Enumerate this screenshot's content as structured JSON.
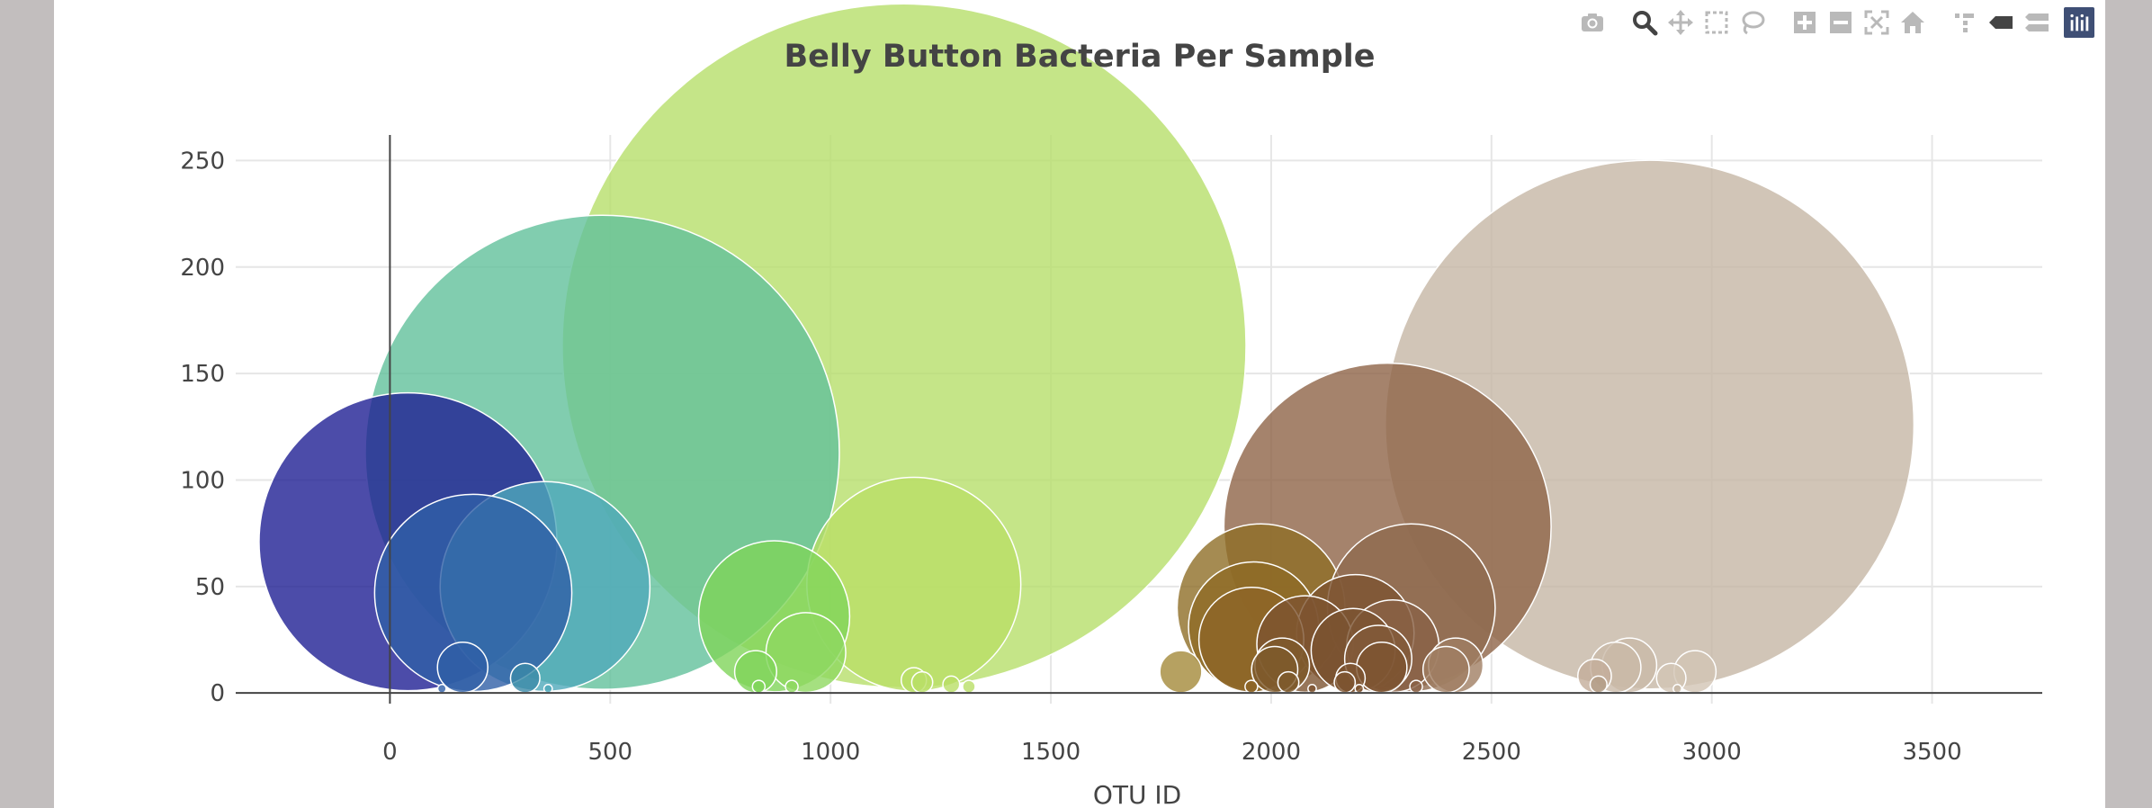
{
  "modebar": {
    "icons": [
      "camera-icon",
      "zoom-icon",
      "pan-icon",
      "box-select-icon",
      "lasso-icon",
      "zoom-in-icon",
      "zoom-out-icon",
      "autoscale-icon",
      "reset-axes-icon",
      "spike-lines-icon",
      "hover-closest-icon",
      "hover-compare-icon",
      "plotly-logo-icon"
    ]
  },
  "colors": {
    "background": "#c2bebe",
    "panel": "#ffffff",
    "grid": "#e6e6e6",
    "axis": "#444444",
    "icon": "#b9b9b9",
    "icon_active": "#444444",
    "logo": "#3f4f75"
  },
  "chart_data": {
    "type": "scatter",
    "subtype": "bubble",
    "title": "Belly Button Bacteria Per Sample",
    "xlabel": "OTU ID",
    "ylabel": "",
    "xlim": [
      -350,
      3750
    ],
    "ylim": [
      -5,
      262
    ],
    "xticks": [
      0,
      500,
      1000,
      1500,
      2000,
      2500,
      3000,
      3500
    ],
    "yticks": [
      0,
      50,
      100,
      150,
      200,
      250
    ],
    "grid": true,
    "colorscale": "Earth",
    "points": [
      {
        "x": 41,
        "y": 71,
        "color": "#1f1f94",
        "size": 71
      },
      {
        "x": 189,
        "y": 47,
        "color": "#2f5fa6",
        "size": 47
      },
      {
        "x": 352,
        "y": 50,
        "color": "#4fa9ba",
        "size": 50
      },
      {
        "x": 482,
        "y": 113,
        "color": "#62c19b",
        "size": 113
      },
      {
        "x": 872,
        "y": 36,
        "color": "#7fd45a",
        "size": 36
      },
      {
        "x": 944,
        "y": 19,
        "color": "#8fd860",
        "size": 19
      },
      {
        "x": 1167,
        "y": 163,
        "color": "#b7df6a",
        "size": 163
      },
      {
        "x": 1189,
        "y": 51,
        "color": "#b9df66",
        "size": 51
      },
      {
        "x": 1977,
        "y": 40,
        "color": "#8f6e27",
        "size": 40
      },
      {
        "x": 1960,
        "y": 31,
        "color": "#8f6a26",
        "size": 31
      },
      {
        "x": 1955,
        "y": 25,
        "color": "#8d6527",
        "size": 25
      },
      {
        "x": 2077,
        "y": 23,
        "color": "#7d5431",
        "size": 23
      },
      {
        "x": 2191,
        "y": 28,
        "color": "#7d5431",
        "size": 28
      },
      {
        "x": 2186,
        "y": 20,
        "color": "#7a5231",
        "size": 20
      },
      {
        "x": 2264,
        "y": 78,
        "color": "#8e6447",
        "size": 78
      },
      {
        "x": 2318,
        "y": 40,
        "color": "#8f6a4f",
        "size": 40
      },
      {
        "x": 2276,
        "y": 22,
        "color": "#8a6246",
        "size": 22
      },
      {
        "x": 2243,
        "y": 16,
        "color": "#825a39",
        "size": 16
      },
      {
        "x": 2251,
        "y": 12,
        "color": "#7d5431",
        "size": 12
      },
      {
        "x": 2025,
        "y": 13,
        "color": "#7e5a2c",
        "size": 13
      },
      {
        "x": 2008,
        "y": 11,
        "color": "#7e5a2c",
        "size": 11
      },
      {
        "x": 2419,
        "y": 13,
        "color": "#a07e63",
        "size": 13
      },
      {
        "x": 2397,
        "y": 11,
        "color": "#a07e63",
        "size": 11
      },
      {
        "x": 2859,
        "y": 126,
        "color": "#c6b7a5",
        "size": 126
      },
      {
        "x": 2813,
        "y": 13,
        "color": "#c9b9a8",
        "size": 13
      },
      {
        "x": 2782,
        "y": 12,
        "color": "#c9b9a8",
        "size": 12
      },
      {
        "x": 2734,
        "y": 8,
        "color": "#c3ad9a",
        "size": 8
      },
      {
        "x": 2962,
        "y": 10,
        "color": "#d2c4b4",
        "size": 10
      },
      {
        "x": 2908,
        "y": 7,
        "color": "#d2c4b4",
        "size": 7
      },
      {
        "x": 165,
        "y": 12,
        "color": "#2f5fa6",
        "size": 12
      },
      {
        "x": 307,
        "y": 7,
        "color": "#3b8aa8",
        "size": 7
      },
      {
        "x": 830,
        "y": 10,
        "color": "#7fd45a",
        "size": 10
      },
      {
        "x": 1795,
        "y": 10,
        "color": "#a4893a",
        "size": 10
      },
      {
        "x": 1189,
        "y": 6,
        "color": "#b9df66",
        "size": 6
      },
      {
        "x": 1208,
        "y": 5,
        "color": "#b9df66",
        "size": 5
      },
      {
        "x": 2180,
        "y": 7,
        "color": "#7d5431",
        "size": 7
      },
      {
        "x": 2167,
        "y": 5,
        "color": "#7d5431",
        "size": 5
      },
      {
        "x": 2039,
        "y": 5,
        "color": "#7e5a2c",
        "size": 5
      },
      {
        "x": 2743,
        "y": 4,
        "color": "#b19c86",
        "size": 4
      },
      {
        "x": 1274,
        "y": 4,
        "color": "#b9df66",
        "size": 4
      },
      {
        "x": 1314,
        "y": 3,
        "color": "#b9df66",
        "size": 3
      },
      {
        "x": 912,
        "y": 3,
        "color": "#8fd860",
        "size": 3
      },
      {
        "x": 837,
        "y": 3,
        "color": "#7fd45a",
        "size": 3
      },
      {
        "x": 2329,
        "y": 3,
        "color": "#8a6246",
        "size": 3
      },
      {
        "x": 1955,
        "y": 3,
        "color": "#8d6527",
        "size": 3
      },
      {
        "x": 2922,
        "y": 2,
        "color": "#c6b7a5",
        "size": 2
      },
      {
        "x": 118,
        "y": 2,
        "color": "#2f5fa6",
        "size": 2
      },
      {
        "x": 359,
        "y": 2,
        "color": "#4fa9ba",
        "size": 2
      },
      {
        "x": 2200,
        "y": 2,
        "color": "#7d5431",
        "size": 2
      },
      {
        "x": 2093,
        "y": 2,
        "color": "#7d5431",
        "size": 2
      }
    ]
  }
}
